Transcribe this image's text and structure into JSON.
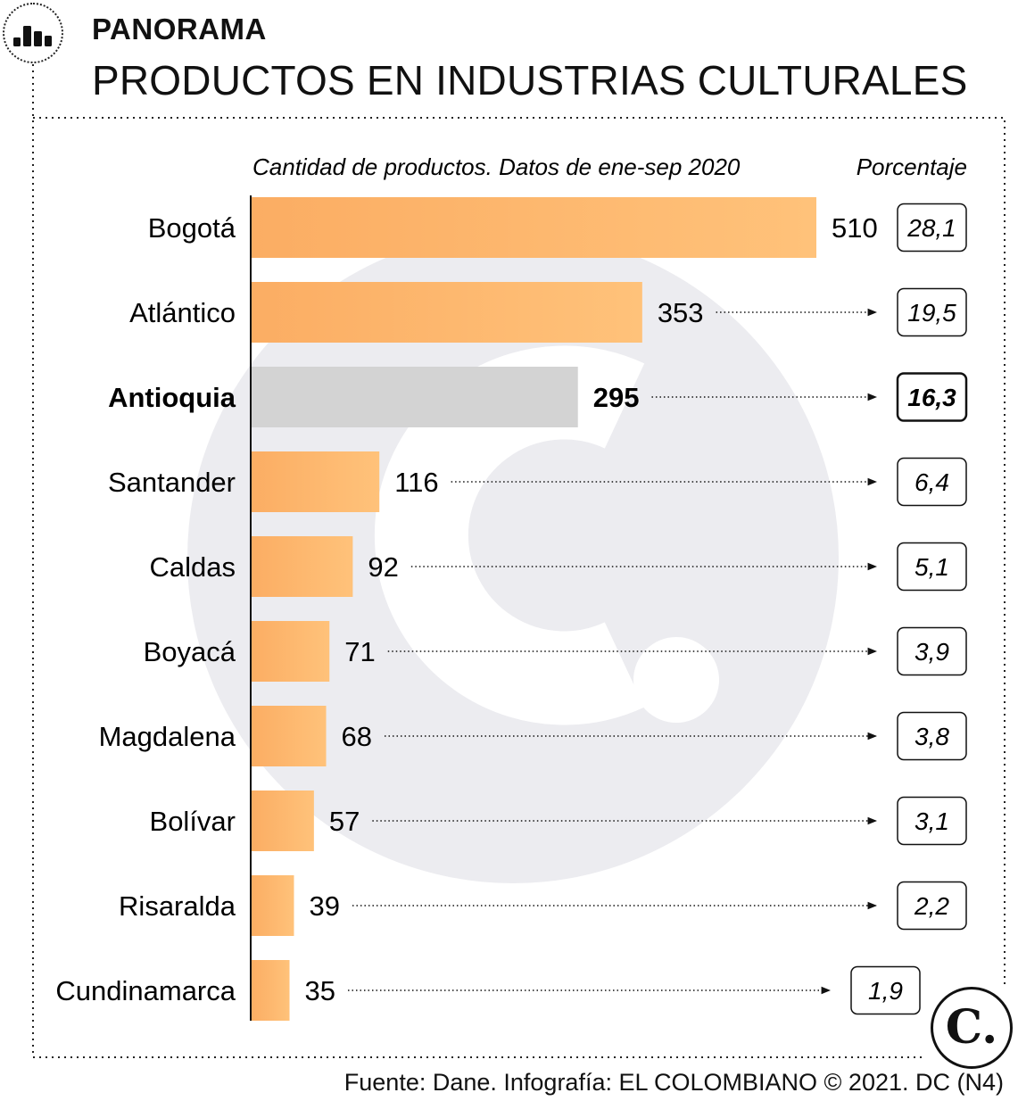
{
  "header": {
    "kicker": "PANORAMA",
    "title": "PRODUCTOS EN INDUSTRIAS CULTURALES",
    "icon": "bar-chart-icon"
  },
  "chart_data": {
    "type": "bar",
    "orientation": "horizontal",
    "subtitle": "Cantidad de productos. Datos de ene-sep 2020",
    "percent_header": "Porcentaje",
    "categories": [
      "Bogotá",
      "Atlántico",
      "Antioquia",
      "Santander",
      "Caldas",
      "Boyacá",
      "Magdalena",
      "Bolívar",
      "Risaralda",
      "Cundinamarca"
    ],
    "values": [
      510,
      353,
      295,
      116,
      92,
      71,
      68,
      57,
      39,
      35
    ],
    "value_labels": [
      "510",
      "353",
      "295",
      "116",
      "92",
      "71",
      "68",
      "57",
      "39",
      "35"
    ],
    "percentages": [
      "28,1",
      "19,5",
      "16,3",
      "6,4",
      "5,1",
      "3,9",
      "3,8",
      "3,1",
      "2,2",
      "1,9"
    ],
    "highlighted": "Antioquia",
    "xlim": [
      0,
      510
    ],
    "grid": false,
    "legend": "none",
    "colors": {
      "bar_light": "#ffc27a",
      "bar_dark": "#fbad63",
      "highlight": "#d3d3d3",
      "watermark": "#ececf0"
    }
  },
  "footer": {
    "source": "Fuente: Dane. Infografía: EL COLOMBIANO © 2021. DC (N4)",
    "brand_mark": "C."
  }
}
